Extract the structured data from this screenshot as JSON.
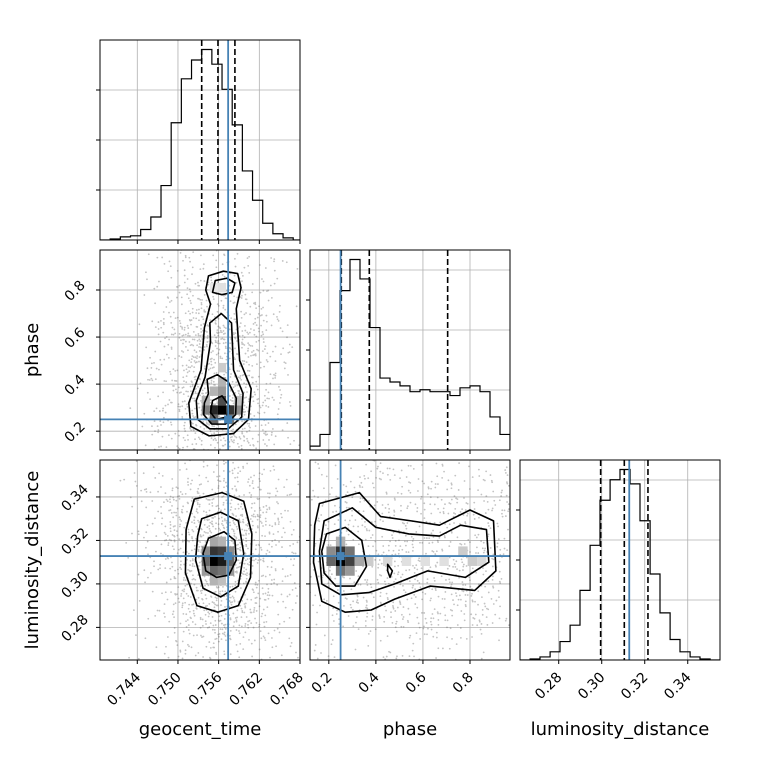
{
  "chart_data": {
    "type": "corner",
    "parameters": [
      "geocent_time",
      "phase",
      "luminosity_distance"
    ],
    "truths": {
      "geocent_time": 0.7574,
      "phase": 0.25,
      "luminosity_distance": 0.3128
    },
    "quantiles": {
      "geocent_time": [
        0.7535,
        0.7559,
        0.7584
      ],
      "phase": [
        0.253,
        0.372,
        0.705
      ],
      "luminosity_distance": [
        0.2995,
        0.3105,
        0.3215
      ]
    },
    "xlim": {
      "geocent_time": [
        0.7385,
        0.768
      ],
      "phase": [
        0.12,
        0.97
      ],
      "luminosity_distance": [
        0.262,
        0.355
      ]
    },
    "ylim": {
      "phase": [
        0.12,
        0.97
      ],
      "luminosity_distance": [
        0.265,
        0.357
      ]
    },
    "ticks": {
      "geocent_time": [
        0.744,
        0.75,
        0.756,
        0.762,
        0.768
      ],
      "phase": [
        0.2,
        0.4,
        0.6,
        0.8
      ],
      "luminosity_distance_x": [
        0.28,
        0.3,
        0.32,
        0.34
      ],
      "luminosity_distance_y": [
        0.28,
        0.3,
        0.32,
        0.34
      ]
    },
    "tick_labels": {
      "geocent_time": [
        "0.744",
        "0.750",
        "0.756",
        "0.762",
        "0.768"
      ],
      "phase": [
        "0.2",
        "0.4",
        "0.6",
        "0.8"
      ],
      "luminosity_distance": [
        "0.28",
        "0.30",
        "0.32",
        "0.34"
      ]
    },
    "histograms": {
      "geocent_time": {
        "bin_edges": [
          0.7385,
          0.74,
          0.7415,
          0.743,
          0.7445,
          0.746,
          0.7475,
          0.749,
          0.7505,
          0.752,
          0.7535,
          0.755,
          0.7565,
          0.758,
          0.7595,
          0.761,
          0.7625,
          0.764,
          0.7655,
          0.767,
          0.7685
        ],
        "counts": [
          0.0,
          0.005,
          0.015,
          0.02,
          0.05,
          0.11,
          0.26,
          0.56,
          0.77,
          0.86,
          0.91,
          0.84,
          0.72,
          0.55,
          0.33,
          0.19,
          0.08,
          0.03,
          0.01,
          0.0
        ]
      },
      "phase": {
        "bin_edges": [
          0.12,
          0.1625,
          0.205,
          0.2475,
          0.29,
          0.3325,
          0.375,
          0.4175,
          0.46,
          0.5025,
          0.545,
          0.5875,
          0.63,
          0.6725,
          0.715,
          0.7575,
          0.8,
          0.8425,
          0.885,
          0.9275,
          0.97
        ],
        "counts": [
          0.02,
          0.08,
          0.45,
          0.82,
          0.98,
          0.88,
          0.63,
          0.37,
          0.35,
          0.33,
          0.3,
          0.31,
          0.3,
          0.3,
          0.28,
          0.32,
          0.33,
          0.3,
          0.17,
          0.08
        ]
      },
      "luminosity_distance": {
        "bin_edges": [
          0.262,
          0.2667,
          0.2713,
          0.276,
          0.2806,
          0.2853,
          0.2899,
          0.2946,
          0.2992,
          0.3039,
          0.3085,
          0.3132,
          0.3178,
          0.3225,
          0.3271,
          0.3318,
          0.3364,
          0.3411,
          0.3457,
          0.3504,
          0.355
        ],
        "counts": [
          0.0,
          0.005,
          0.015,
          0.04,
          0.09,
          0.17,
          0.34,
          0.56,
          0.78,
          0.88,
          0.93,
          0.86,
          0.68,
          0.42,
          0.23,
          0.1,
          0.04,
          0.015,
          0.005,
          0.0
        ]
      }
    },
    "contours": {
      "geocent_time_vs_phase": {
        "levels": [
          [
            [
              0.7548,
              0.74
            ],
            [
              0.7541,
              0.8
            ],
            [
              0.7545,
              0.86
            ],
            [
              0.7567,
              0.88
            ],
            [
              0.7588,
              0.87
            ],
            [
              0.7593,
              0.81
            ],
            [
              0.7586,
              0.72
            ],
            [
              0.7591,
              0.5
            ],
            [
              0.7608,
              0.38
            ],
            [
              0.7604,
              0.25
            ],
            [
              0.7582,
              0.19
            ],
            [
              0.7546,
              0.18
            ],
            [
              0.7519,
              0.22
            ],
            [
              0.7516,
              0.32
            ],
            [
              0.7534,
              0.46
            ],
            [
              0.7539,
              0.64
            ],
            [
              0.7548,
              0.74
            ]
          ],
          [
            [
              0.7551,
              0.79
            ],
            [
              0.7555,
              0.84
            ],
            [
              0.7572,
              0.85
            ],
            [
              0.7584,
              0.83
            ],
            [
              0.758,
              0.79
            ],
            [
              0.7565,
              0.78
            ],
            [
              0.7551,
              0.79
            ]
          ],
          [
            [
              0.7548,
              0.58
            ],
            [
              0.7547,
              0.66
            ],
            [
              0.7564,
              0.7
            ],
            [
              0.7579,
              0.66
            ],
            [
              0.7582,
              0.46
            ],
            [
              0.7596,
              0.36
            ],
            [
              0.7594,
              0.26
            ],
            [
              0.7574,
              0.21
            ],
            [
              0.7547,
              0.21
            ],
            [
              0.7529,
              0.25
            ],
            [
              0.7527,
              0.33
            ],
            [
              0.754,
              0.43
            ],
            [
              0.7548,
              0.58
            ]
          ],
          [
            [
              0.7545,
              0.36
            ],
            [
              0.7543,
              0.42
            ],
            [
              0.7558,
              0.44
            ],
            [
              0.7574,
              0.41
            ],
            [
              0.7586,
              0.34
            ],
            [
              0.7585,
              0.27
            ],
            [
              0.757,
              0.23
            ],
            [
              0.755,
              0.23
            ],
            [
              0.7538,
              0.27
            ],
            [
              0.7539,
              0.32
            ],
            [
              0.7545,
              0.36
            ]
          ],
          [
            [
              0.7551,
              0.33
            ],
            [
              0.7565,
              0.35
            ],
            [
              0.7575,
              0.31
            ],
            [
              0.7572,
              0.26
            ],
            [
              0.7556,
              0.25
            ],
            [
              0.7548,
              0.28
            ],
            [
              0.7551,
              0.33
            ]
          ]
        ]
      },
      "geocent_time_vs_luminosity_distance": {
        "levels": [
          [
            [
              0.7524,
              0.339
            ],
            [
              0.7565,
              0.342
            ],
            [
              0.7597,
              0.338
            ],
            [
              0.7609,
              0.323
            ],
            [
              0.7607,
              0.303
            ],
            [
              0.7589,
              0.29
            ],
            [
              0.7559,
              0.287
            ],
            [
              0.7528,
              0.29
            ],
            [
              0.7511,
              0.305
            ],
            [
              0.7512,
              0.325
            ],
            [
              0.7524,
              0.339
            ]
          ],
          [
            [
              0.7535,
              0.33
            ],
            [
              0.7563,
              0.333
            ],
            [
              0.7589,
              0.329
            ],
            [
              0.7597,
              0.314
            ],
            [
              0.7589,
              0.299
            ],
            [
              0.7563,
              0.294
            ],
            [
              0.7537,
              0.298
            ],
            [
              0.7526,
              0.311
            ],
            [
              0.7529,
              0.322
            ],
            [
              0.7535,
              0.33
            ]
          ],
          [
            [
              0.7545,
              0.321
            ],
            [
              0.7568,
              0.324
            ],
            [
              0.7584,
              0.32
            ],
            [
              0.7586,
              0.311
            ],
            [
              0.7575,
              0.304
            ],
            [
              0.7557,
              0.303
            ],
            [
              0.7541,
              0.306
            ],
            [
              0.7537,
              0.314
            ],
            [
              0.7545,
              0.321
            ]
          ]
        ]
      },
      "phase_vs_luminosity_distance": {
        "levels": [
          [
            [
              0.16,
              0.337
            ],
            [
              0.33,
              0.342
            ],
            [
              0.42,
              0.331
            ],
            [
              0.55,
              0.329
            ],
            [
              0.67,
              0.327
            ],
            [
              0.8,
              0.334
            ],
            [
              0.9,
              0.329
            ],
            [
              0.91,
              0.306
            ],
            [
              0.82,
              0.297
            ],
            [
              0.63,
              0.299
            ],
            [
              0.48,
              0.293
            ],
            [
              0.38,
              0.288
            ],
            [
              0.27,
              0.287
            ],
            [
              0.17,
              0.292
            ],
            [
              0.135,
              0.31
            ],
            [
              0.14,
              0.327
            ],
            [
              0.16,
              0.337
            ]
          ],
          [
            [
              0.18,
              0.329
            ],
            [
              0.3,
              0.335
            ],
            [
              0.4,
              0.326
            ],
            [
              0.54,
              0.323
            ],
            [
              0.67,
              0.322
            ],
            [
              0.76,
              0.327
            ],
            [
              0.87,
              0.325
            ],
            [
              0.88,
              0.31
            ],
            [
              0.78,
              0.303
            ],
            [
              0.62,
              0.306
            ],
            [
              0.48,
              0.3
            ],
            [
              0.37,
              0.296
            ],
            [
              0.25,
              0.295
            ],
            [
              0.17,
              0.3
            ],
            [
              0.16,
              0.315
            ],
            [
              0.18,
              0.329
            ]
          ],
          [
            [
              0.19,
              0.323
            ],
            [
              0.27,
              0.326
            ],
            [
              0.34,
              0.32
            ],
            [
              0.36,
              0.308
            ],
            [
              0.31,
              0.299
            ],
            [
              0.23,
              0.299
            ],
            [
              0.18,
              0.305
            ],
            [
              0.17,
              0.315
            ],
            [
              0.19,
              0.323
            ]
          ],
          [
            [
              0.45,
              0.309
            ],
            [
              0.47,
              0.306
            ],
            [
              0.46,
              0.303
            ],
            [
              0.45,
              0.306
            ],
            [
              0.45,
              0.309
            ]
          ]
        ]
      }
    },
    "density_cells": {
      "geocent_time_vs_phase": [
        [
          0.7565,
          0.29,
          1.0
        ],
        [
          0.7553,
          0.29,
          0.85
        ],
        [
          0.7577,
          0.29,
          0.8
        ],
        [
          0.7565,
          0.33,
          0.7
        ],
        [
          0.7553,
          0.25,
          0.6
        ],
        [
          0.7577,
          0.25,
          0.55
        ],
        [
          0.7541,
          0.29,
          0.5
        ],
        [
          0.7589,
          0.29,
          0.45
        ],
        [
          0.7565,
          0.37,
          0.4
        ],
        [
          0.7565,
          0.41,
          0.3
        ],
        [
          0.7553,
          0.37,
          0.3
        ],
        [
          0.7565,
          0.47,
          0.2
        ],
        [
          0.7541,
          0.33,
          0.3
        ],
        [
          0.7589,
          0.33,
          0.25
        ],
        [
          0.7565,
          0.81,
          0.12
        ],
        [
          0.7553,
          0.81,
          0.1
        ]
      ],
      "geocent_time_vs_luminosity_distance": [
        [
          0.7553,
          0.3105,
          1.0
        ],
        [
          0.7565,
          0.3105,
          0.9
        ],
        [
          0.7553,
          0.315,
          0.8
        ],
        [
          0.7565,
          0.315,
          0.75
        ],
        [
          0.7541,
          0.3105,
          0.6
        ],
        [
          0.7577,
          0.3105,
          0.6
        ],
        [
          0.7553,
          0.306,
          0.6
        ],
        [
          0.7565,
          0.306,
          0.55
        ],
        [
          0.7541,
          0.315,
          0.45
        ],
        [
          0.7577,
          0.315,
          0.45
        ],
        [
          0.7541,
          0.306,
          0.4
        ],
        [
          0.7577,
          0.306,
          0.4
        ],
        [
          0.7553,
          0.3195,
          0.35
        ],
        [
          0.7565,
          0.3195,
          0.3
        ],
        [
          0.7553,
          0.3015,
          0.3
        ],
        [
          0.7565,
          0.3015,
          0.25
        ]
      ],
      "phase_vs_luminosity_distance": [
        [
          0.25,
          0.3105,
          1.0
        ],
        [
          0.25,
          0.315,
          0.8
        ],
        [
          0.29,
          0.3105,
          0.75
        ],
        [
          0.21,
          0.3105,
          0.6
        ],
        [
          0.29,
          0.315,
          0.55
        ],
        [
          0.25,
          0.306,
          0.55
        ],
        [
          0.21,
          0.315,
          0.45
        ],
        [
          0.29,
          0.306,
          0.4
        ],
        [
          0.33,
          0.3105,
          0.35
        ],
        [
          0.25,
          0.3195,
          0.3
        ],
        [
          0.37,
          0.3105,
          0.2
        ],
        [
          0.45,
          0.3105,
          0.15
        ],
        [
          0.53,
          0.3105,
          0.12
        ],
        [
          0.61,
          0.3105,
          0.12
        ],
        [
          0.69,
          0.3105,
          0.12
        ],
        [
          0.77,
          0.315,
          0.2
        ],
        [
          0.81,
          0.3105,
          0.2
        ],
        [
          0.85,
          0.3105,
          0.15
        ]
      ]
    },
    "grid": true,
    "truth_color": "#4682b4",
    "line_color": "#000000"
  }
}
